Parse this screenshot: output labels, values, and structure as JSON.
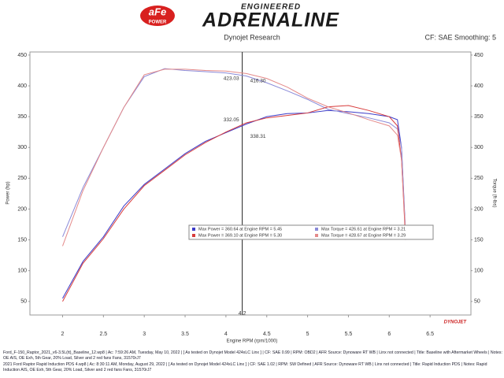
{
  "brand": {
    "logo_top": "aFe",
    "logo_bottom": "POWER",
    "tagline": "ENGINEERED",
    "name": "ADRENALINE"
  },
  "footer": [
    "Ford_F-150_Raptor_2021_v6-3.5L(tt)_Baseline_12.wp8 | Ac: 7:59:26 AM, Tuesday, May 10, 2022 | [ As tested on Dynojet Model 424xLC Linx ] | CF: SAE 0.99 | RPM: OBD2 | AFR Source: Dynoware RT WB | Linx not connected | Title: Baseline with Aftermarket Wheels | Notes: OE AIS, OE Exh, 5th Gear, 20% Load, Silver and 2 red fans Fans, 31570rJ7",
    "2021 Ford Raptor Rapid Induction PDS 4.wp8 | Ac: 8:30:11 AM, Monday, August 29, 2022 | [ As tested on Dynojet Model 424xLC Linx ] | CF: SAE 1.02 | RPM: SW Defined | AFR Source: Dynoware RT WB | Linx not connected | Title: Rapid Induction PDS | Notes: Rapid Induction AIS, OE Exh, 5th Gear, 20% Load, Silver and 2 red fans Fans, 31570rJ7"
  ],
  "chart_data": {
    "type": "line",
    "title": "Dynojet Research",
    "subtitle": "CF: SAE Smoothing: 5",
    "x_label": "Engine RPM (rpm/1000)",
    "y_label": "Power (hp)",
    "y2_label": "Torque (ft-lbs)",
    "watermark": "DYNOJET",
    "x": [
      2.0,
      2.25,
      2.5,
      2.75,
      3.0,
      3.25,
      3.5,
      3.75,
      4.0,
      4.25,
      4.5,
      4.75,
      5.0,
      5.25,
      5.5,
      5.75,
      6.0,
      6.1,
      6.15,
      6.2
    ],
    "series": [
      {
        "name": "Max Power = 360.64 at Engine RPM = 5.45",
        "color": "#3c3cc8",
        "values": [
          55,
          115,
          155,
          205,
          240,
          265,
          290,
          310,
          324,
          338,
          350,
          355,
          356,
          360,
          358,
          355,
          350,
          345,
          300,
          160
        ]
      },
      {
        "name": "Max Torque = 426.61 at Engine RPM = 3.21",
        "color": "#8a8ad8",
        "axis": "y2",
        "values": [
          155,
          235,
          300,
          365,
          415,
          428,
          425,
          423,
          421,
          416,
          405,
          392,
          378,
          362,
          355,
          348,
          340,
          330,
          300,
          150
        ]
      },
      {
        "name": "Max Power = 369.10 at Engine RPM = 5.30",
        "color": "#d83c3c",
        "values": [
          50,
          112,
          152,
          200,
          238,
          263,
          288,
          308,
          325,
          340,
          348,
          352,
          356,
          366,
          368,
          360,
          350,
          335,
          280,
          150
        ]
      },
      {
        "name": "Max Torque = 428.67 at Engine RPM = 3.29",
        "color": "#e48a8a",
        "axis": "y2",
        "values": [
          140,
          230,
          300,
          365,
          418,
          427,
          427,
          425,
          424,
          420,
          412,
          398,
          380,
          366,
          356,
          345,
          335,
          320,
          280,
          160
        ]
      }
    ],
    "annotations": [
      "423.03",
      "416.30",
      "332.05",
      "338.31"
    ],
    "cursor": 4.2,
    "xlim": [
      1.6,
      7.0
    ],
    "xticks": [
      2.0,
      2.5,
      3.0,
      3.5,
      4.0,
      4.5,
      5.0,
      5.5,
      6.0,
      6.5
    ],
    "ylim": [
      28,
      455
    ],
    "yticks": [
      50,
      100,
      150,
      200,
      250,
      300,
      350,
      400,
      450
    ],
    "y2lim": [
      28,
      455
    ],
    "y2ticks": [
      50,
      100,
      150,
      200,
      250,
      300,
      350,
      400,
      450
    ],
    "grid": false
  }
}
